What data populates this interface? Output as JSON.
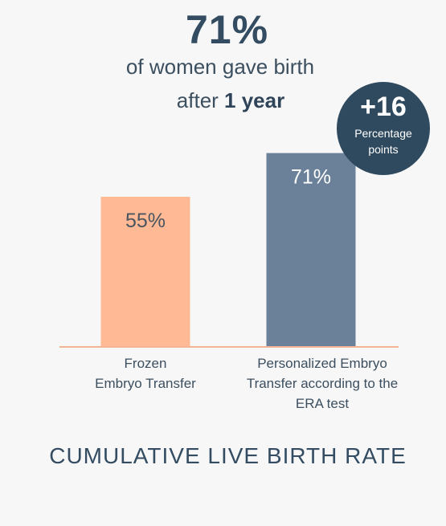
{
  "header": {
    "headline": "71%",
    "line1": "of women gave birth",
    "line2_prefix": "after ",
    "line2_bold": "1 year"
  },
  "badge": {
    "value": "+16",
    "label_line1": "Percentage",
    "label_line2": "points"
  },
  "footer": {
    "title": "CUMULATIVE LIVE BIRTH RATE"
  },
  "chart_data": {
    "type": "bar",
    "categories": [
      "Frozen Embryo Transfer",
      "Personalized Embryo Transfer according to the ERA test"
    ],
    "category_lines": [
      [
        "Frozen",
        "Embryo Transfer"
      ],
      [
        "Personalized Embryo",
        "Transfer according to the",
        "ERA test"
      ]
    ],
    "values": [
      55,
      71
    ],
    "value_labels": [
      "55%",
      "71%"
    ],
    "colors": [
      "#ffb995",
      "#6a8199"
    ],
    "ylim": [
      0,
      100
    ],
    "grid": false,
    "axis_color": "#f3b493"
  }
}
